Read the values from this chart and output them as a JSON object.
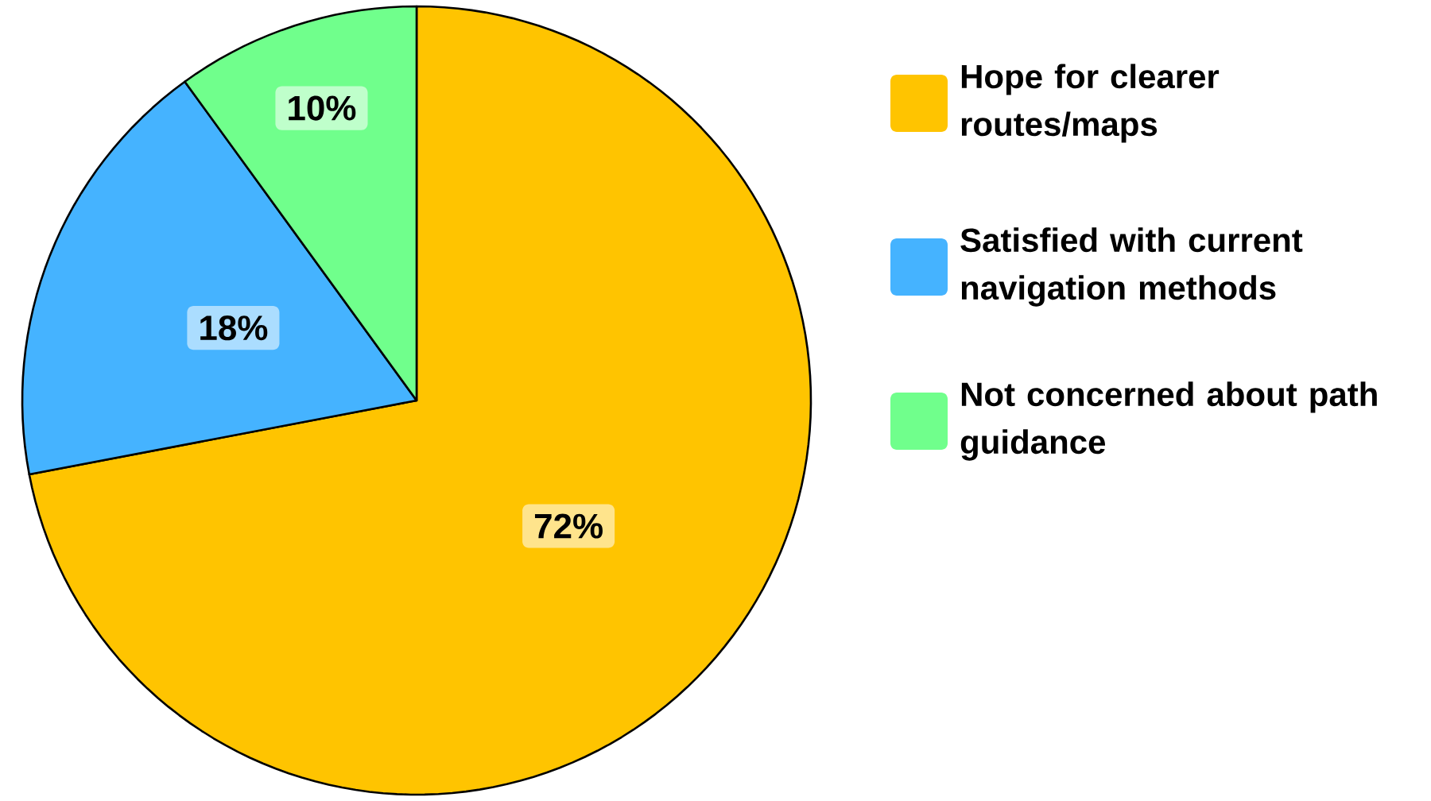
{
  "chart_data": {
    "type": "pie",
    "categories": [
      "Hope for clearer routes/maps",
      "Satisfied with current navigation methods",
      "Not concerned about path guidance"
    ],
    "values": [
      72,
      18,
      10
    ],
    "colors": [
      "#ffc400",
      "#45b3ff",
      "#70ff8c"
    ],
    "value_labels": [
      "72%",
      "18%",
      "10%"
    ],
    "legend": "right"
  }
}
